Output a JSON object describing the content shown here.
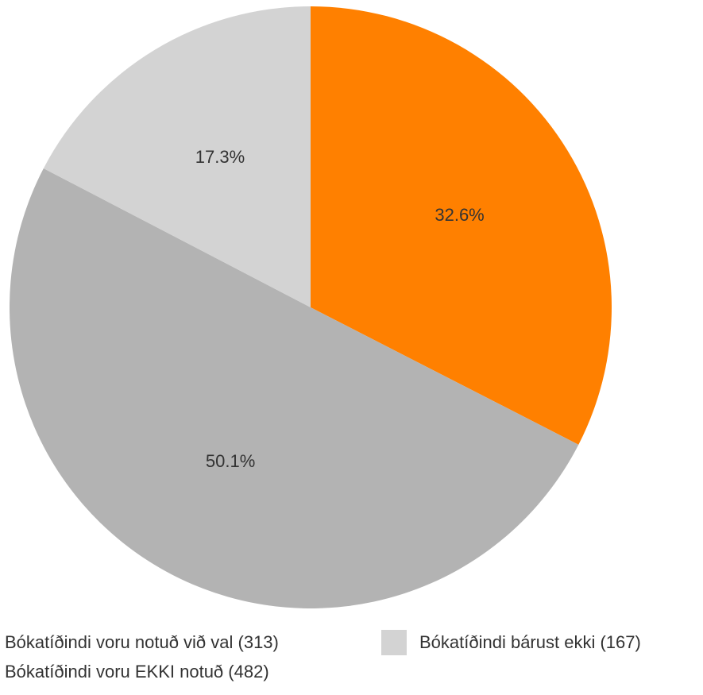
{
  "chart_data": {
    "type": "pie",
    "title": "",
    "series": [
      {
        "name": "",
        "slices": [
          {
            "label": "Bókatíðindi voru notuð við val (313)",
            "value": 313,
            "percent_label": "32.6%",
            "color": "#ff8000"
          },
          {
            "label": "Bókatíðindi voru EKKI notuð (482)",
            "value": 482,
            "percent_label": "50.1%",
            "color": "#b3b3b3"
          },
          {
            "label": "Bókatíðindi bárust ekki (167)",
            "value": 167,
            "percent_label": "17.3%",
            "color": "#d3d3d3"
          }
        ]
      }
    ],
    "start_angle": "12 o'clock",
    "direction": "clockwise",
    "legend_position": "bottom"
  }
}
